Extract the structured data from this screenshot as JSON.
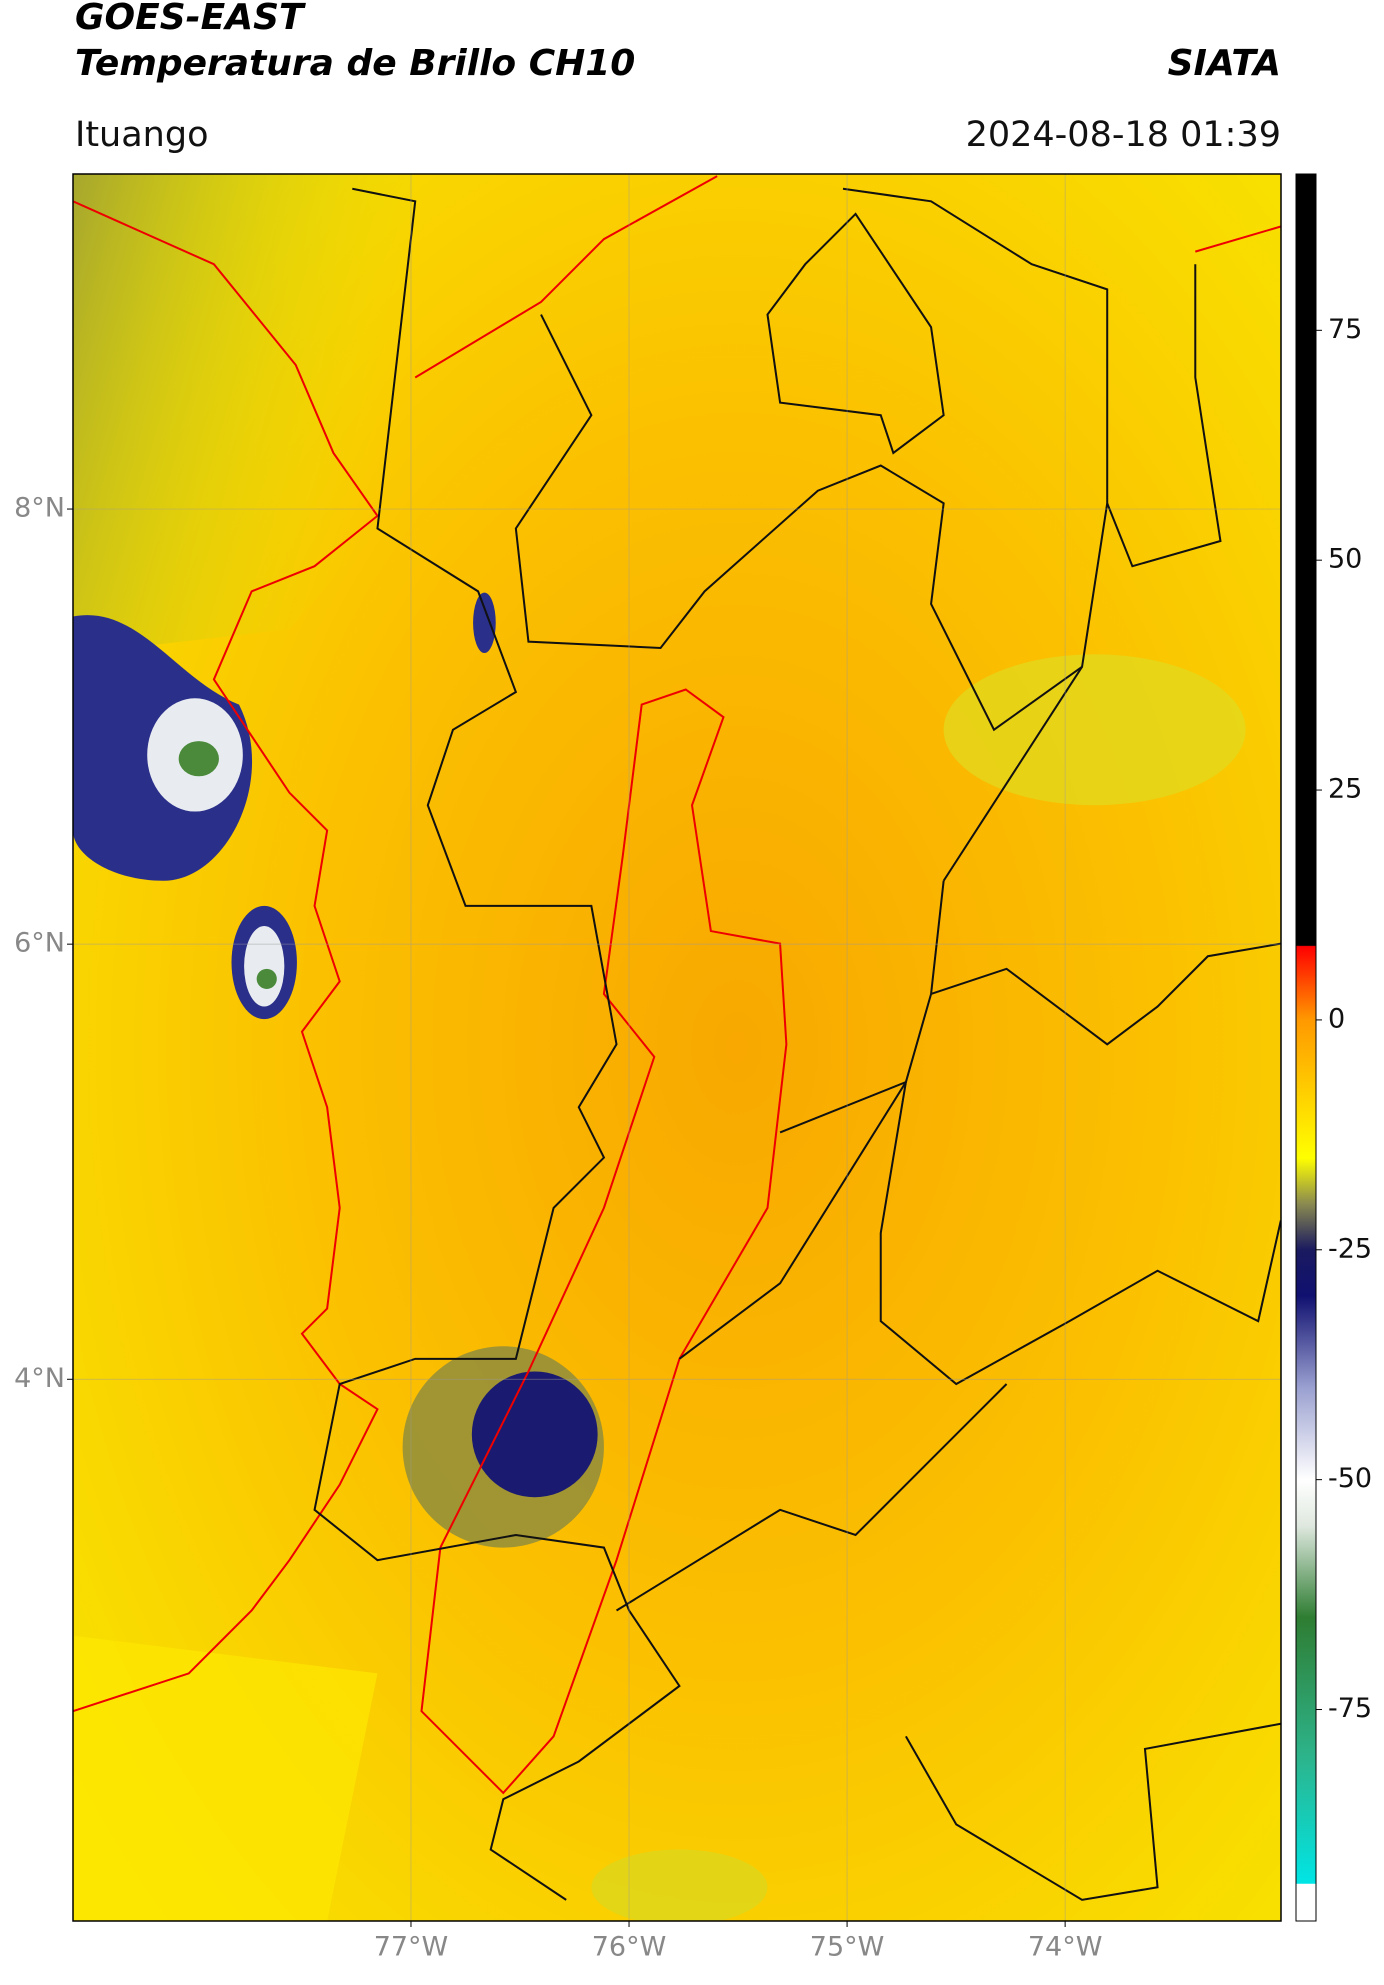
{
  "header": {
    "title": "GOES-EAST",
    "subtitle": "Temperatura de Brillo CH10",
    "source": "SIATA",
    "location": "Ituango",
    "datetime": "2024-08-18 01:39"
  },
  "chart_data": {
    "type": "map",
    "xlim": [
      -78.55,
      -73.01
    ],
    "ylim": [
      1.51,
      9.54
    ],
    "xticks": [
      {
        "value": -77,
        "label": "77°W"
      },
      {
        "value": -76,
        "label": "76°W"
      },
      {
        "value": -75,
        "label": "75°W"
      },
      {
        "value": -74,
        "label": "74°W"
      }
    ],
    "yticks": [
      {
        "value": 8,
        "label": "8°N"
      },
      {
        "value": 6,
        "label": "6°N"
      },
      {
        "value": 4,
        "label": "4°N"
      }
    ],
    "grid": true,
    "colorbar": {
      "ylim": [
        -98,
        92
      ],
      "yticks": [
        75,
        50,
        25,
        0,
        -25,
        -50,
        -75
      ],
      "colormap": [
        {
          "value": -98,
          "color": "#ffffff"
        },
        {
          "value": -94,
          "color": "#ffffff"
        },
        {
          "value": -93.9,
          "color": "#00e5e5"
        },
        {
          "value": -80,
          "color": "#2db38a"
        },
        {
          "value": -65,
          "color": "#2e7d32"
        },
        {
          "value": -55,
          "color": "#dfe8df"
        },
        {
          "value": -50,
          "color": "#ffffff"
        },
        {
          "value": -40,
          "color": "#9aa0d0"
        },
        {
          "value": -30,
          "color": "#101070"
        },
        {
          "value": -25,
          "color": "#1a1a60"
        },
        {
          "value": -20,
          "color": "#8a8a50"
        },
        {
          "value": -15,
          "color": "#ffff00"
        },
        {
          "value": 0,
          "color": "#ff9900"
        },
        {
          "value": 8,
          "color": "#ff0000"
        },
        {
          "value": 8.1,
          "color": "#000000"
        },
        {
          "value": 92,
          "color": "#000000"
        }
      ]
    }
  }
}
